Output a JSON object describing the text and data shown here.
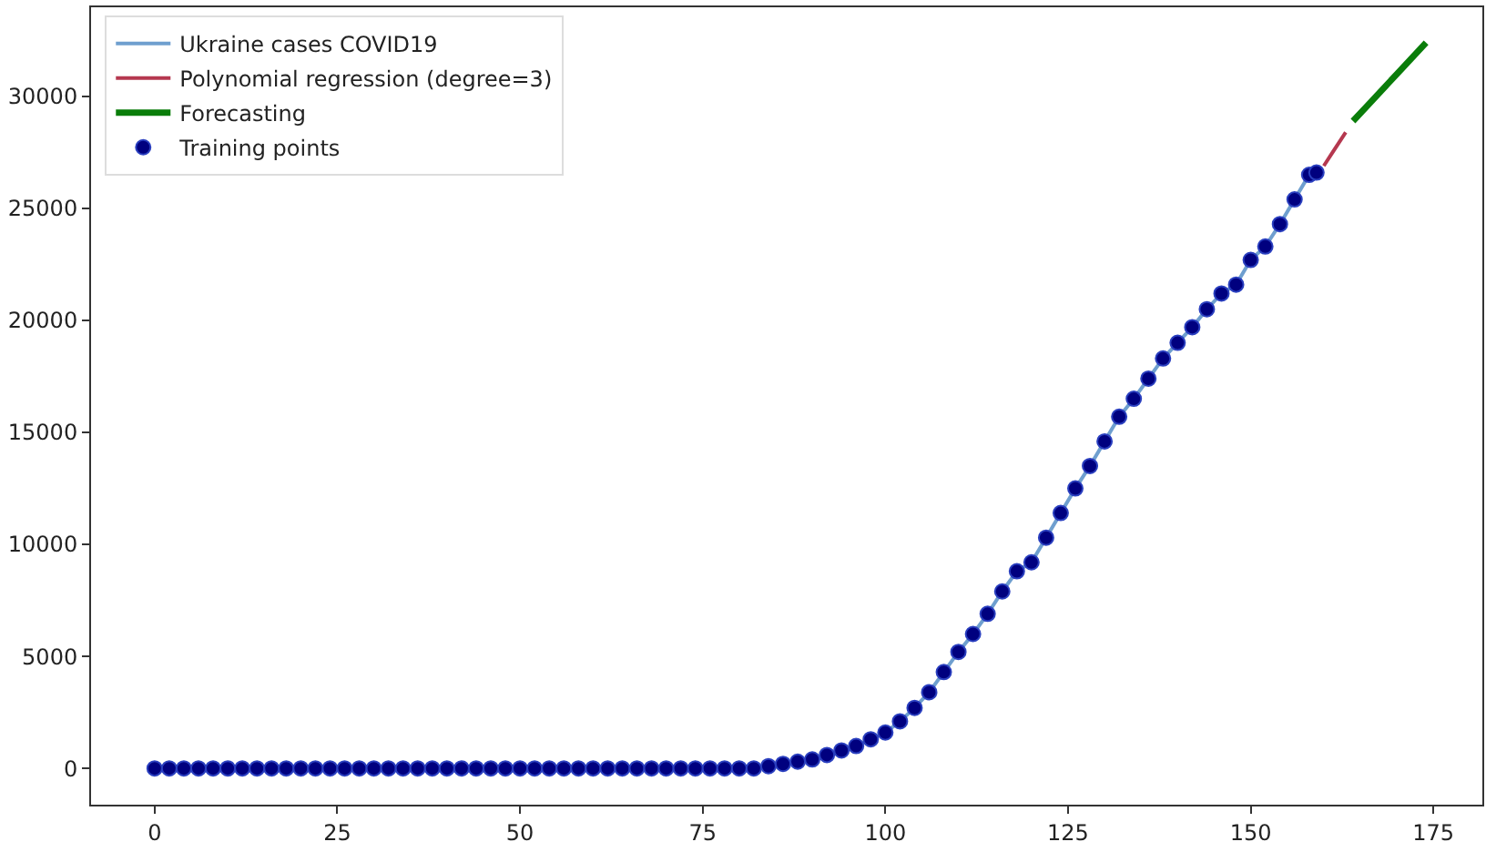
{
  "chart_data": {
    "type": "line",
    "xlim": [
      -8.7,
      181.7
    ],
    "xticks": [
      0,
      25,
      50,
      75,
      100,
      125,
      150,
      175
    ],
    "ylim": [
      -1620,
      33980
    ],
    "yticks": [
      0,
      5000,
      10000,
      15000,
      20000,
      25000,
      30000
    ],
    "legend": "top left",
    "series": [
      {
        "name": "Ukraine cases COVID19",
        "color": "#6f9fcf",
        "marker": "none",
        "x": [
          0,
          2,
          4,
          6,
          8,
          10,
          12,
          14,
          16,
          18,
          20,
          22,
          24,
          26,
          28,
          30,
          32,
          34,
          36,
          38,
          40,
          42,
          44,
          46,
          48,
          50,
          52,
          54,
          56,
          58,
          60,
          62,
          64,
          66,
          68,
          70,
          72,
          74,
          76,
          78,
          80,
          82,
          84,
          86,
          88,
          90,
          92,
          94,
          96,
          98,
          100,
          102,
          104,
          106,
          108,
          110,
          112,
          114,
          116,
          118,
          120,
          122,
          124,
          126,
          128,
          130,
          132,
          134,
          136,
          138,
          140,
          142,
          144,
          146,
          148,
          150,
          152,
          154,
          156,
          158,
          159
        ],
        "values": [
          0,
          0,
          0,
          0,
          0,
          0,
          0,
          0,
          0,
          0,
          0,
          0,
          0,
          0,
          0,
          0,
          0,
          0,
          0,
          0,
          0,
          0,
          0,
          0,
          0,
          0,
          0,
          0,
          0,
          0,
          0,
          0,
          0,
          0,
          0,
          0,
          0,
          0,
          0,
          0,
          0,
          0,
          100,
          200,
          300,
          400,
          600,
          800,
          1000,
          1300,
          1600,
          2100,
          2700,
          3400,
          4300,
          5200,
          6000,
          6900,
          7900,
          8800,
          9200,
          10300,
          11400,
          12500,
          13500,
          14600,
          15700,
          16500,
          17400,
          18300,
          19000,
          19700,
          20500,
          21200,
          21600,
          22700,
          23300,
          24300,
          25400,
          26500,
          26600
        ]
      },
      {
        "name": "Polynomial regression (degree=3)",
        "color": "#b5384f",
        "marker": "none",
        "x": [
          160,
          161,
          162,
          163
        ],
        "values": [
          26900,
          27400,
          27900,
          28400
        ]
      },
      {
        "name": "Forecasting",
        "color": "#0a7d0a",
        "marker": "none",
        "x": [
          164,
          166,
          168,
          170,
          172,
          174
        ],
        "values": [
          28900,
          29600,
          30300,
          31000,
          31700,
          32400
        ]
      },
      {
        "name": "Training points",
        "type": "scatter",
        "color": "#00007f",
        "marker": "circle",
        "x": [
          0,
          2,
          4,
          6,
          8,
          10,
          12,
          14,
          16,
          18,
          20,
          22,
          24,
          26,
          28,
          30,
          32,
          34,
          36,
          38,
          40,
          42,
          44,
          46,
          48,
          50,
          52,
          54,
          56,
          58,
          60,
          62,
          64,
          66,
          68,
          70,
          72,
          74,
          76,
          78,
          80,
          82,
          84,
          86,
          88,
          90,
          92,
          94,
          96,
          98,
          100,
          102,
          104,
          106,
          108,
          110,
          112,
          114,
          116,
          118,
          120,
          122,
          124,
          126,
          128,
          130,
          132,
          134,
          136,
          138,
          140,
          142,
          144,
          146,
          148,
          150,
          152,
          154,
          156,
          158,
          159
        ],
        "values": [
          0,
          0,
          0,
          0,
          0,
          0,
          0,
          0,
          0,
          0,
          0,
          0,
          0,
          0,
          0,
          0,
          0,
          0,
          0,
          0,
          0,
          0,
          0,
          0,
          0,
          0,
          0,
          0,
          0,
          0,
          0,
          0,
          0,
          0,
          0,
          0,
          0,
          0,
          0,
          0,
          0,
          0,
          100,
          200,
          300,
          400,
          600,
          800,
          1000,
          1300,
          1600,
          2100,
          2700,
          3400,
          4300,
          5200,
          6000,
          6900,
          7900,
          8800,
          9200,
          10300,
          11400,
          12500,
          13500,
          14600,
          15700,
          16500,
          17400,
          18300,
          19000,
          19700,
          20500,
          21200,
          21600,
          22700,
          23300,
          24300,
          25400,
          26500,
          26600
        ]
      }
    ]
  }
}
